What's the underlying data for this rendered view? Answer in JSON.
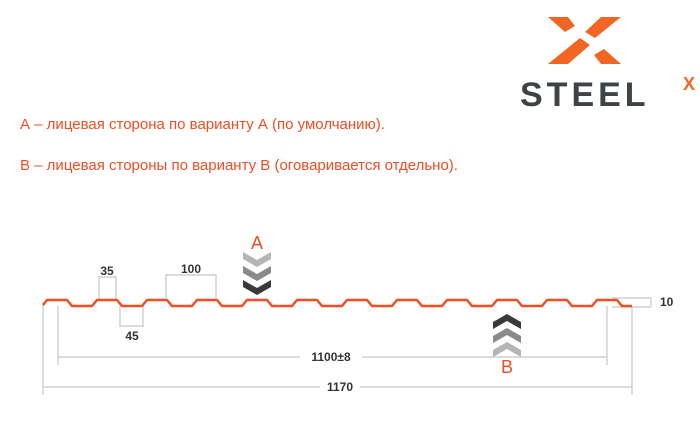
{
  "logo": {
    "text": "STEEL",
    "superscript": "X",
    "brand_color": "#f26522",
    "text_color": "#3d4347"
  },
  "notes": [
    "А – лицевая сторона по варианту А (по умолчанию).",
    "В – лицевая стороны по варианту В (оговаривается отдельно)."
  ],
  "diagram": {
    "profile_color": "#f04e23",
    "labels": {
      "face_a": "A",
      "face_b": "B"
    },
    "dimensions": {
      "top_width": "35",
      "bottom_width": "45",
      "pitch": "100",
      "height": "10",
      "working_width": "1100±8",
      "total_width": "1170"
    }
  }
}
